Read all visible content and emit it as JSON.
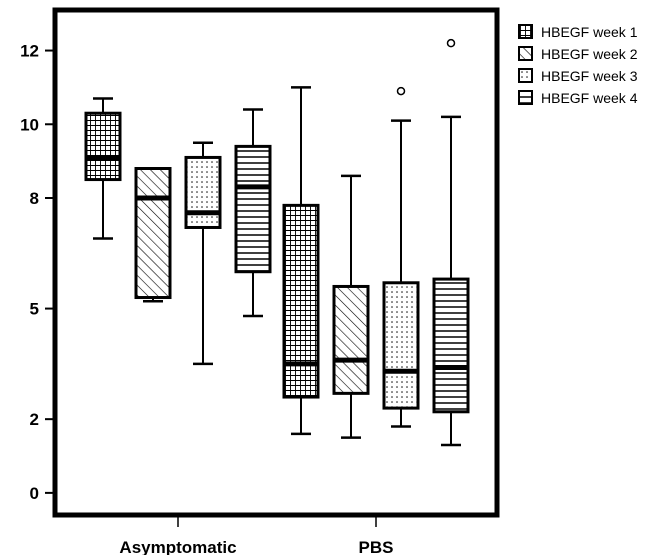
{
  "chart_data": {
    "type": "boxplot",
    "categories": [
      "Asymptomatic",
      "PBS"
    ],
    "y_ticks": [
      0,
      2,
      5,
      8,
      10,
      12
    ],
    "ylim": [
      -0.6,
      13.1
    ],
    "grid": false,
    "legend_position": "top-right",
    "series": [
      {
        "name": "HBEGF week 1",
        "pattern": "grid",
        "boxes": [
          {
            "category": "Asymptomatic",
            "min": 6.9,
            "q1": 8.5,
            "median": 9.1,
            "q3": 10.3,
            "max": 10.7,
            "outliers": []
          },
          {
            "category": "PBS",
            "min": 1.6,
            "q1": 2.6,
            "median": 3.5,
            "q3": 7.8,
            "max": 11.0,
            "outliers": []
          }
        ]
      },
      {
        "name": "HBEGF week 2",
        "pattern": "diagonal",
        "boxes": [
          {
            "category": "Asymptomatic",
            "min": 5.2,
            "q1": 5.3,
            "median": 8.0,
            "q3": 8.8,
            "max": 8.8,
            "outliers": []
          },
          {
            "category": "PBS",
            "min": 1.5,
            "q1": 2.7,
            "median": 3.6,
            "q3": 5.6,
            "max": 8.6,
            "outliers": []
          }
        ]
      },
      {
        "name": "HBEGF week 3",
        "pattern": "dots",
        "boxes": [
          {
            "category": "Asymptomatic",
            "min": 3.5,
            "q1": 7.2,
            "median": 7.6,
            "q3": 9.1,
            "max": 9.5,
            "outliers": []
          },
          {
            "category": "PBS",
            "min": 1.8,
            "q1": 2.3,
            "median": 3.3,
            "q3": 5.7,
            "max": 10.1,
            "outliers": [
              10.9
            ]
          }
        ]
      },
      {
        "name": "HBEGF week 4",
        "pattern": "horizontal",
        "boxes": [
          {
            "category": "Asymptomatic",
            "min": 4.8,
            "q1": 6.0,
            "median": 8.3,
            "q3": 9.4,
            "max": 10.4,
            "outliers": []
          },
          {
            "category": "PBS",
            "min": 1.3,
            "q1": 2.2,
            "median": 3.4,
            "q3": 5.8,
            "max": 10.2,
            "outliers": [
              12.2
            ]
          }
        ]
      }
    ]
  }
}
